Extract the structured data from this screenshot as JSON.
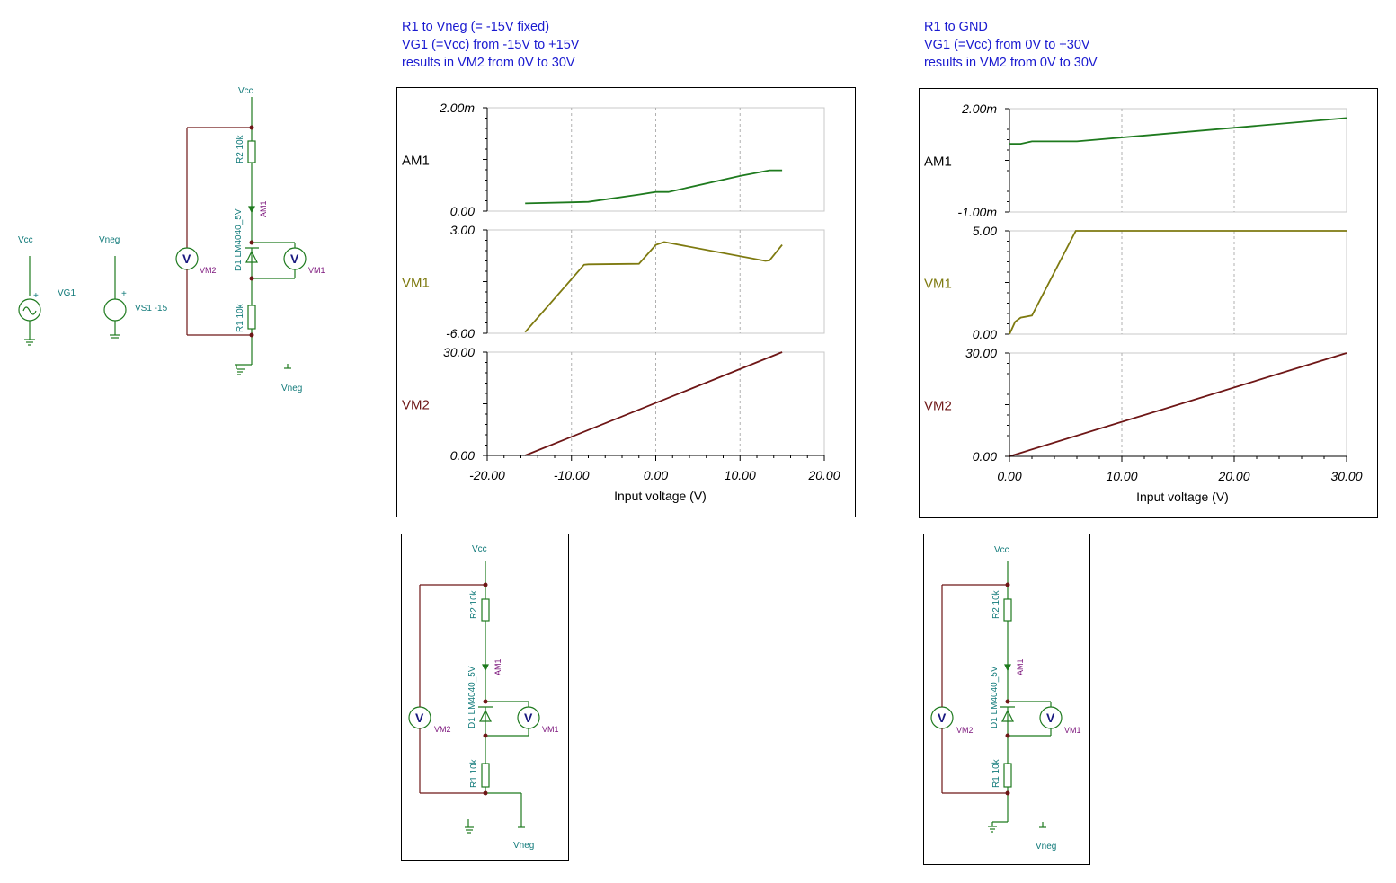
{
  "annotations": {
    "left": [
      "R1 to Vneg (= -15V fixed)",
      "VG1 (=Vcc) from -15V to +15V",
      "results in VM2 from 0V to 30V"
    ],
    "right": [
      "R1 to GND",
      "VG1 (=Vcc) from 0V to +30V",
      "results in VM2 from 0V to 30V"
    ]
  },
  "schematic": {
    "vcc": "Vcc",
    "vneg": "Vneg",
    "vg1": "VG1",
    "vs1": "VS1 -15",
    "r2": "R2 10k",
    "r1": "R1 10k",
    "d1": "D1 LM4040_5V",
    "am1": "AM1",
    "vm1": "VM1",
    "vm2": "VM2",
    "v": "V",
    "plus": "+"
  },
  "colors": {
    "am1": "#1e7a1e",
    "vm1": "#7e7a10",
    "vm2": "#6e1616",
    "annotation": "#1a1ad0",
    "wire_main": "#1e7a1e",
    "wire_left": "#6e1616",
    "label_teal": "#117a7a",
    "label_purple": "#7a127a"
  },
  "chart_data": [
    {
      "type": "line",
      "xlabel": "Input voltage (V)",
      "xlim": [
        -20,
        20
      ],
      "xticks": [
        "-20.00",
        "-10.00",
        "0.00",
        "10.00",
        "20.00"
      ],
      "subplots": [
        {
          "name": "AM1",
          "ylim": [
            0,
            0.002
          ],
          "yticks": [
            "0.00",
            "2.00m"
          ],
          "x": [
            -15.5,
            -10,
            -8,
            -2,
            0,
            1.5,
            10,
            13.5,
            15
          ],
          "y": [
            0.00015,
            0.00017,
            0.00018,
            0.00032,
            0.00037,
            0.00037,
            0.00068,
            0.00079,
            0.00079
          ]
        },
        {
          "name": "VM1",
          "ylim": [
            -6,
            3
          ],
          "yticks": [
            "-6.00",
            "3.00"
          ],
          "x": [
            -15.5,
            -8.5,
            -8,
            -2,
            0,
            1,
            13,
            13.5,
            15
          ],
          "y": [
            -5.9,
            -0.03,
            0,
            0.05,
            1.7,
            1.95,
            0.3,
            0.35,
            1.7
          ]
        },
        {
          "name": "VM2",
          "ylim": [
            0,
            30
          ],
          "yticks": [
            "0.00",
            "30.00"
          ],
          "x": [
            -15.5,
            15
          ],
          "y": [
            0,
            30
          ]
        }
      ]
    },
    {
      "type": "line",
      "xlabel": "Input voltage (V)",
      "xlim": [
        0,
        30
      ],
      "xticks": [
        "0.00",
        "10.00",
        "20.00",
        "30.00"
      ],
      "subplots": [
        {
          "name": "AM1",
          "ylim": [
            -0.001,
            0.002
          ],
          "yticks": [
            "-1.00m",
            "2.00m"
          ],
          "x": [
            0,
            1.0,
            2.0,
            6.0,
            30
          ],
          "y": [
            0.00098,
            0.00098,
            0.00105,
            0.00105,
            0.00173
          ]
        },
        {
          "name": "VM1",
          "ylim": [
            0,
            5
          ],
          "yticks": [
            "0.00",
            "5.00"
          ],
          "x": [
            0,
            0.5,
            1,
            2,
            5.9,
            30
          ],
          "y": [
            0,
            0.6,
            0.8,
            0.9,
            5,
            5
          ]
        },
        {
          "name": "VM2",
          "ylim": [
            0,
            30
          ],
          "yticks": [
            "0.00",
            "30.00"
          ],
          "x": [
            0,
            30
          ],
          "y": [
            0,
            30
          ]
        }
      ]
    }
  ]
}
